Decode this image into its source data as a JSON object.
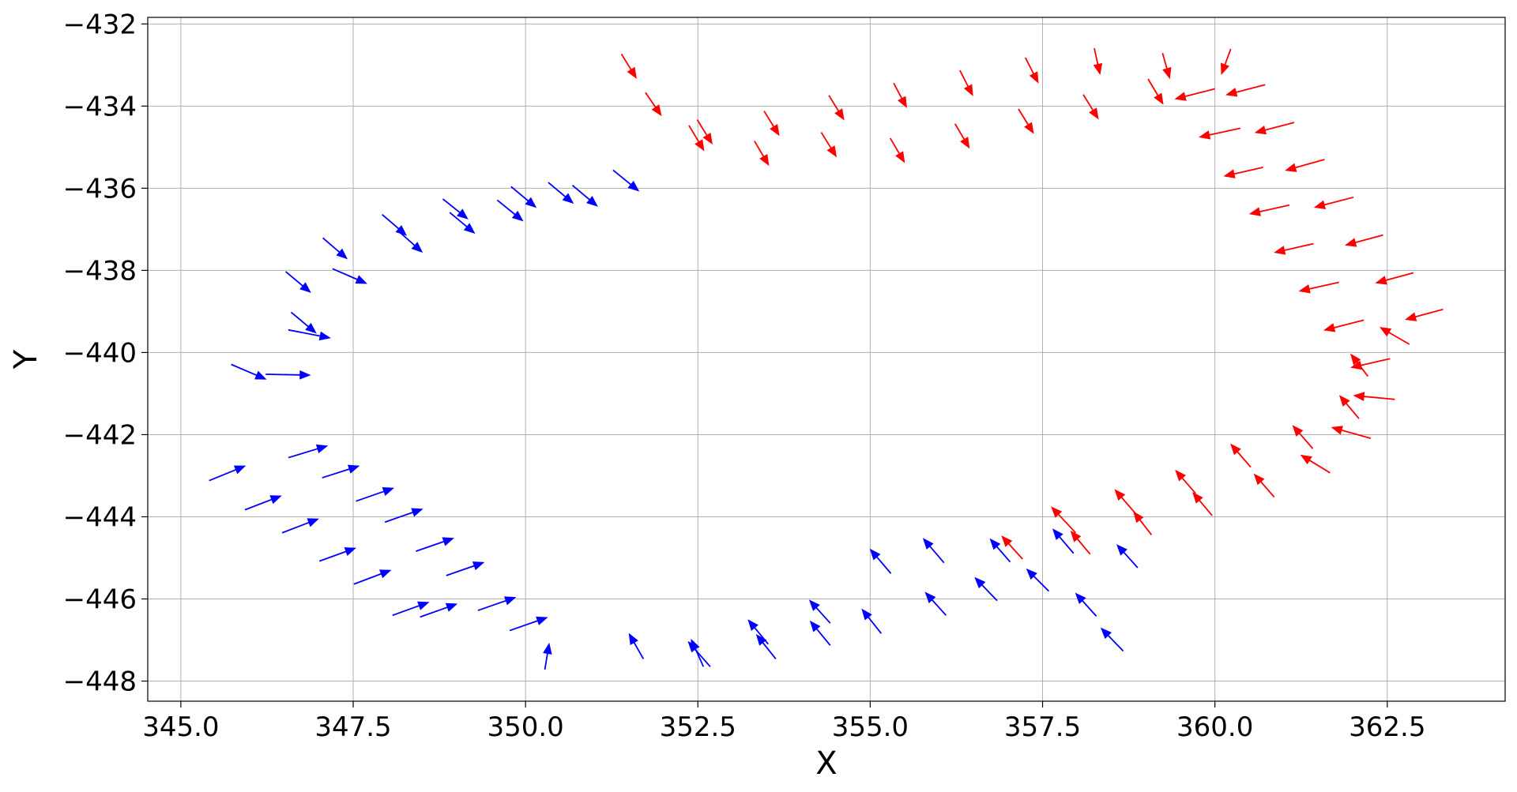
{
  "chart_data": {
    "type": "quiver",
    "xlabel": "X",
    "ylabel": "Y",
    "xlim": [
      344.52,
      364.21
    ],
    "ylim": [
      -448.49,
      -431.84
    ],
    "xticks": [
      {
        "value": 345,
        "label": "345.0"
      },
      347.5,
      {
        "value": 350,
        "label": "350.0"
      },
      352.5,
      {
        "value": 355,
        "label": "355.0"
      },
      357.5,
      {
        "value": 360,
        "label": "360.0"
      },
      362.5
    ],
    "yticks": [
      {
        "value": -448,
        "label": "−448"
      },
      {
        "value": -446,
        "label": "−446"
      },
      {
        "value": -444,
        "label": "−444"
      },
      {
        "value": -442,
        "label": "−442"
      },
      {
        "value": -440,
        "label": "−440"
      },
      {
        "value": -438,
        "label": "−438"
      },
      {
        "value": -436,
        "label": "−436"
      },
      {
        "value": -434,
        "label": "−434"
      },
      {
        "value": -432,
        "label": "−432"
      }
    ],
    "grid": true,
    "series": [
      {
        "color": "#ff0000",
        "x": [
          351.39,
          351.74,
          352.49,
          352.37,
          353.32,
          353.46,
          354.29,
          354.4,
          355.29,
          355.34,
          356.23,
          356.3,
          357.15,
          357.25,
          358.09,
          358.25,
          359.03,
          359.24,
          360.23,
          360.0,
          360.73,
          360.37,
          361.15,
          360.7,
          361.59,
          361.08,
          362.01,
          361.43,
          362.44,
          361.8,
          362.88,
          362.16,
          363.31,
          362.82,
          362.54,
          362.22,
          362.61,
          362.09,
          362.26,
          361.67,
          361.42,
          360.86,
          360.52,
          359.96,
          359.72,
          359.08,
          358.91,
          358.19,
          357.98,
          357.21
        ],
        "y": [
          -432.73,
          -433.67,
          -434.33,
          -434.47,
          -434.85,
          -434.12,
          -434.64,
          -433.74,
          -434.78,
          -433.44,
          -434.43,
          -433.13,
          -434.07,
          -432.82,
          -433.72,
          -432.59,
          -433.34,
          -432.71,
          -432.61,
          -433.58,
          -433.48,
          -434.54,
          -434.4,
          -435.49,
          -435.3,
          -436.41,
          -436.22,
          -437.35,
          -437.14,
          -438.29,
          -438.06,
          -439.21,
          -438.95,
          -439.8,
          -440.15,
          -440.58,
          -441.14,
          -441.61,
          -442.09,
          -442.93,
          -442.34,
          -443.52,
          -442.79,
          -443.97,
          -443.43,
          -444.44,
          -444.04,
          -444.91,
          -444.39,
          -445.03
        ],
        "u": [
          0.21,
          0.22,
          0.21,
          0.21,
          0.2,
          0.21,
          0.21,
          0.21,
          0.2,
          0.18,
          0.2,
          0.18,
          0.21,
          0.18,
          0.21,
          0.08,
          0.21,
          0.1,
          -0.13,
          -0.56,
          -0.55,
          -0.58,
          -0.55,
          -0.55,
          -0.55,
          -0.56,
          -0.55,
          -0.55,
          -0.53,
          -0.56,
          -0.53,
          -0.56,
          -0.53,
          -0.41,
          -0.55,
          -0.24,
          -0.58,
          -0.27,
          -0.55,
          -0.41,
          -0.28,
          -0.28,
          -0.28,
          -0.27,
          -0.28,
          -0.25,
          -0.35,
          -0.27,
          -0.34,
          -0.29
        ],
        "v": [
          -0.57,
          -0.54,
          -0.57,
          -0.59,
          -0.57,
          -0.57,
          -0.57,
          -0.57,
          -0.57,
          -0.57,
          -0.57,
          -0.59,
          -0.57,
          -0.59,
          -0.57,
          -0.61,
          -0.59,
          -0.59,
          -0.59,
          -0.24,
          -0.24,
          -0.21,
          -0.24,
          -0.21,
          -0.26,
          -0.21,
          -0.24,
          -0.21,
          -0.24,
          -0.21,
          -0.24,
          -0.24,
          -0.24,
          0.4,
          -0.21,
          0.52,
          0.09,
          0.54,
          0.26,
          0.42,
          0.54,
          0.54,
          0.54,
          0.54,
          0.54,
          0.54,
          0.68,
          0.54,
          0.61,
          0.54
        ]
      },
      {
        "color": "#0000ff",
        "x": [
          345.41,
          345.93,
          346.56,
          346.47,
          347.05,
          347.01,
          347.54,
          347.51,
          347.96,
          348.41,
          348.07,
          348.85,
          348.47,
          349.31,
          349.77,
          350.28,
          345.73,
          346.23,
          346.56,
          346.6,
          346.52,
          347.2,
          347.06,
          347.92,
          348.14,
          348.8,
          348.9,
          349.59,
          349.79,
          350.33,
          350.68,
          351.27,
          351.71,
          352.68,
          352.58,
          353.52,
          353.63,
          354.42,
          354.42,
          355.16,
          355.3,
          356.07,
          356.1,
          356.84,
          357.03,
          357.59,
          357.95,
          358.28,
          358.67,
          358.88
        ],
        "y": [
          -443.12,
          -443.83,
          -442.56,
          -444.39,
          -443.05,
          -445.08,
          -443.62,
          -445.64,
          -444.13,
          -444.84,
          -446.4,
          -445.43,
          -446.44,
          -446.28,
          -446.77,
          -447.72,
          -440.29,
          -440.53,
          -439.45,
          -439.02,
          -438.03,
          -437.96,
          -437.21,
          -436.64,
          -437.02,
          -436.26,
          -436.59,
          -436.29,
          -435.96,
          -435.86,
          -435.93,
          -435.56,
          -447.46,
          -447.65,
          -447.65,
          -447.1,
          -447.46,
          -446.59,
          -447.13,
          -446.84,
          -445.38,
          -445.12,
          -446.4,
          -446.04,
          -445.1,
          -445.81,
          -444.89,
          -446.42,
          -447.27,
          -445.24
        ],
        "u": [
          0.51,
          0.51,
          0.55,
          0.51,
          0.52,
          0.51,
          0.53,
          0.52,
          0.53,
          0.53,
          0.51,
          0.53,
          0.52,
          0.53,
          0.53,
          0.06,
          0.49,
          0.63,
          0.59,
          0.35,
          0.35,
          0.48,
          0.34,
          0.34,
          0.35,
          0.35,
          0.35,
          0.36,
          0.35,
          0.35,
          0.35,
          0.36,
          -0.2,
          -0.31,
          -0.17,
          -0.28,
          -0.27,
          -0.29,
          -0.28,
          -0.27,
          -0.29,
          -0.29,
          -0.29,
          -0.31,
          -0.28,
          -0.31,
          -0.29,
          -0.29,
          -0.31,
          -0.29
        ],
        "v": [
          0.35,
          0.33,
          0.28,
          0.33,
          0.28,
          0.31,
          0.31,
          0.33,
          0.31,
          0.31,
          0.31,
          0.31,
          0.31,
          0.31,
          0.31,
          0.61,
          -0.35,
          -0.02,
          -0.19,
          -0.49,
          -0.49,
          -0.35,
          -0.49,
          -0.49,
          -0.52,
          -0.47,
          -0.49,
          -0.49,
          -0.49,
          -0.49,
          -0.49,
          -0.49,
          0.59,
          0.59,
          0.64,
          0.57,
          0.57,
          0.54,
          0.57,
          0.57,
          0.57,
          0.57,
          0.54,
          0.54,
          0.54,
          0.52,
          0.57,
          0.54,
          0.54,
          0.54
        ]
      }
    ]
  }
}
